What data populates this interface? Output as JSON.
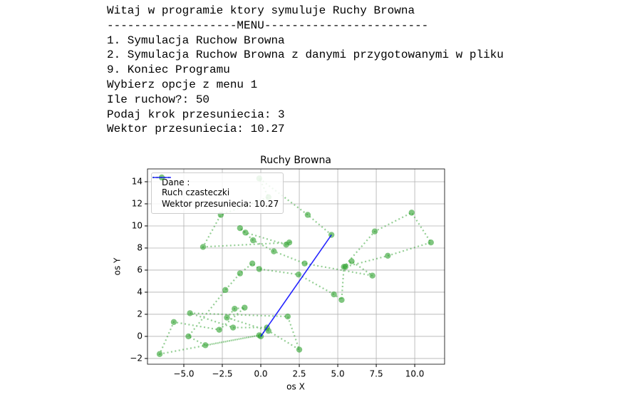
{
  "console": {
    "lines": [
      "Witaj w programie ktory symuluje Ruchy Browna",
      "-------------------MENU------------------------",
      "1. Symulacja Ruchow Browna",
      "2. Symulacja Ruchow Browna z danymi przygotowanymi w pliku",
      "9. Koniec Programu",
      "Wybierz opcje z menu 1",
      "Ile ruchow?: 50",
      "Podaj krok przesuniecia: 3",
      "Wektor przesuniecia: 10.27"
    ]
  },
  "chart_data": {
    "type": "line",
    "title": "Ruchy Browna",
    "x_label": "os X",
    "y_label": "os Y",
    "xlim": [
      -7.36,
      11.94
    ],
    "ylim": [
      -2.52,
      15.16
    ],
    "xticks": [
      {
        "value": -5,
        "label": "−5.0"
      },
      {
        "value": -2.5,
        "label": "−2.5"
      },
      {
        "value": 0,
        "label": "0.0"
      },
      {
        "value": 2.5,
        "label": "2.5"
      },
      {
        "value": 5,
        "label": "5.0"
      },
      {
        "value": 7.5,
        "label": "7.5"
      },
      {
        "value": 10,
        "label": "10.0"
      }
    ],
    "yticks": [
      {
        "value": -2,
        "label": "−2"
      },
      0,
      2,
      4,
      6,
      8,
      10,
      12,
      14
    ],
    "grid": true,
    "legend": "upper left",
    "series": [
      {
        "name": "Dane :\nRuch czasteczki",
        "color": "#2ca02c",
        "style": "dotted",
        "markers": true,
        "x": [
          0,
          0.4,
          -1.8,
          -4.6,
          1.75,
          2.5,
          0.5,
          -2.2,
          -1.7,
          -1.05,
          -2.7,
          -5.65,
          -6.57,
          -0.1,
          -3.6,
          -4.7,
          -2.3,
          -1.35,
          -0.55,
          -0.1,
          2.45,
          4.75,
          5.25,
          5.4,
          7.4,
          9.8,
          11.05,
          8.25,
          5.5,
          5.9,
          7.25,
          2.85,
          0.85,
          -0.5,
          -1.35,
          -1.0,
          1.65,
          1.85,
          -3.75,
          -2.6,
          0.5,
          -0.1,
          3.05,
          4.59
        ],
        "values": [
          0,
          0.8,
          0.8,
          2.1,
          1.8,
          -1.2,
          0.5,
          1.7,
          2.5,
          2.6,
          0.6,
          1.3,
          -1.6,
          0.1,
          -0.8,
          0,
          4.2,
          5.7,
          6.6,
          6.1,
          5.6,
          3.8,
          3.3,
          6.3,
          9.5,
          11.2,
          8.5,
          7.3,
          6.3,
          6.8,
          5.5,
          6.6,
          7.7,
          8.7,
          9.8,
          9.4,
          8.3,
          8.5,
          8.1,
          11.0,
          12.6,
          14.3,
          11.0,
          9.19
        ]
      },
      {
        "name": "Wektor przesuniecia: 10.27",
        "color": "#0000ff",
        "style": "solid",
        "markers": false,
        "x": [
          0,
          4.59
        ],
        "values": [
          0,
          9.19
        ]
      }
    ]
  }
}
